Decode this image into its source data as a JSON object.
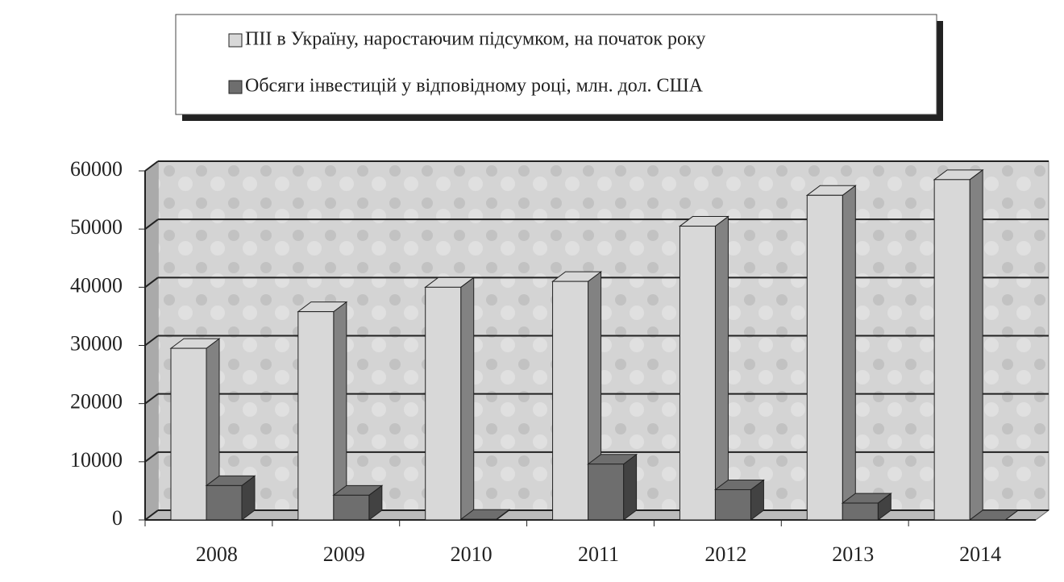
{
  "chart_data": {
    "type": "bar3d",
    "categories": [
      "2008",
      "2009",
      "2010",
      "2011",
      "2012",
      "2013",
      "2014"
    ],
    "series": [
      {
        "name": "ПІІ в Україну, наростаючим підсумком, на початок року",
        "color": "#d8d8d8",
        "values": [
          29500,
          35800,
          40000,
          41000,
          50500,
          55800,
          58500
        ]
      },
      {
        "name": "Обсяги інвестицій у відповідному році, млн. дол. США",
        "color": "#6e6e6e",
        "values": [
          5900,
          4250,
          100,
          9600,
          5200,
          2900,
          0
        ]
      }
    ],
    "ylim": [
      0,
      60000
    ],
    "yticks": [
      0,
      10000,
      20000,
      30000,
      40000,
      50000,
      60000
    ],
    "grid": true
  }
}
